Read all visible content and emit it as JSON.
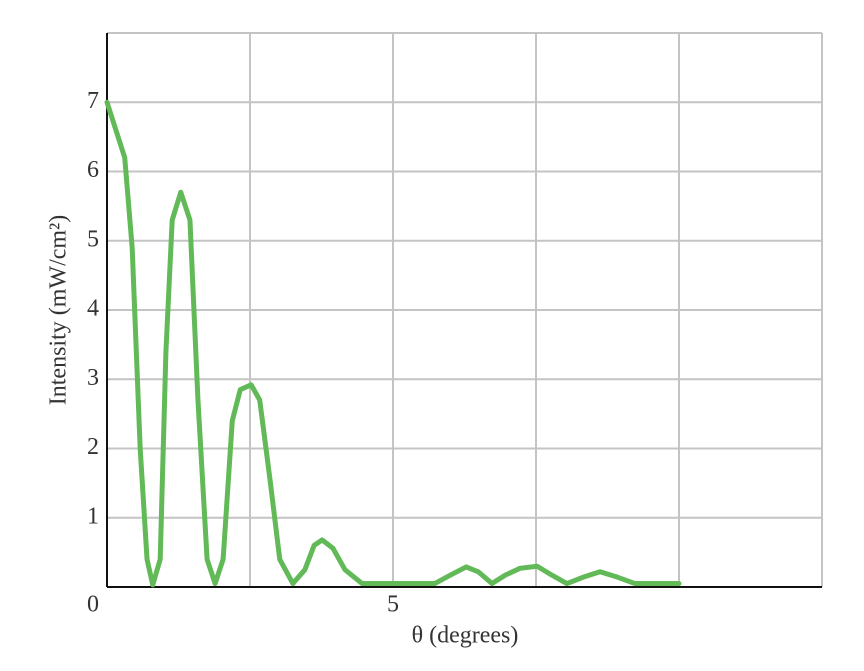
{
  "chart_data": {
    "type": "line",
    "y_label": "Intensity (mW/cm²)",
    "x_label": "θ (degrees)",
    "x": [
      0,
      0.31,
      0.44,
      0.58,
      0.7,
      0.8,
      0.93,
      1.03,
      1.14,
      1.29,
      1.45,
      1.59,
      1.75,
      1.89,
      2.03,
      2.19,
      2.33,
      2.52,
      2.67,
      2.85,
      3.02,
      3.25,
      3.46,
      3.62,
      3.76,
      3.95,
      4.16,
      4.46,
      5.73,
      6.0,
      6.28,
      6.49,
      6.73,
      6.96,
      7.22,
      7.52,
      7.78,
      8.04,
      8.32,
      8.62,
      8.93,
      9.23,
      10.0
    ],
    "values": [
      7,
      6.2,
      4.9,
      2.0,
      0.4,
      0.03,
      0.4,
      3.4,
      5.3,
      5.7,
      5.3,
      2.7,
      0.4,
      0.05,
      0.4,
      2.4,
      2.85,
      2.92,
      2.7,
      1.55,
      0.4,
      0.05,
      0.25,
      0.6,
      0.68,
      0.56,
      0.25,
      0.05,
      0.05,
      0.17,
      0.29,
      0.22,
      0.05,
      0.17,
      0.27,
      0.3,
      0.17,
      0.05,
      0.14,
      0.22,
      0.14,
      0.05,
      0.05
    ],
    "color": "#62b957",
    "xlim": [
      0,
      12.5
    ],
    "xticks": [
      0,
      5
    ],
    "xgrid": [
      2.5,
      7.5,
      10
    ],
    "ylim": [
      0,
      8
    ],
    "yticks": [
      1,
      2,
      3,
      4,
      5,
      6,
      7
    ],
    "grid": true
  }
}
